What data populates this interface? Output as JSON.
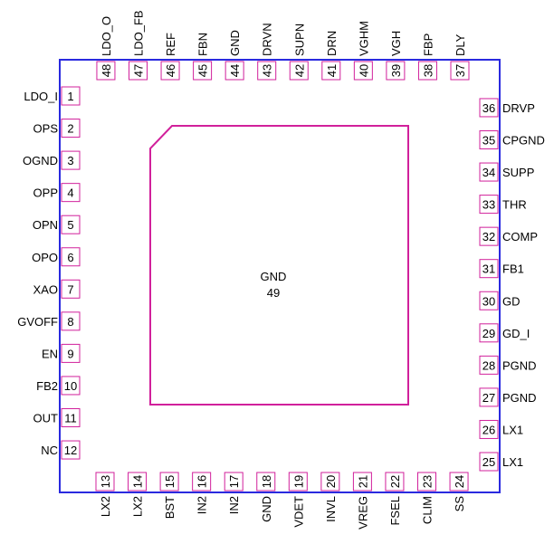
{
  "colors": {
    "package_outline": "#2a2adf",
    "pin_box": "#d1209b",
    "exposed_pad": "#d1209b",
    "text": "#000000"
  },
  "exposed_pad": {
    "name": "GND",
    "number": "49"
  },
  "pins": {
    "left": [
      {
        "num": "1",
        "name": "LDO_I"
      },
      {
        "num": "2",
        "name": "OPS"
      },
      {
        "num": "3",
        "name": "OGND"
      },
      {
        "num": "4",
        "name": "OPP"
      },
      {
        "num": "5",
        "name": "OPN"
      },
      {
        "num": "6",
        "name": "OPO"
      },
      {
        "num": "7",
        "name": "XAO"
      },
      {
        "num": "8",
        "name": "GVOFF"
      },
      {
        "num": "9",
        "name": "EN"
      },
      {
        "num": "10",
        "name": "FB2"
      },
      {
        "num": "11",
        "name": "OUT"
      },
      {
        "num": "12",
        "name": "NC"
      }
    ],
    "bottom": [
      {
        "num": "13",
        "name": "LX2"
      },
      {
        "num": "14",
        "name": "LX2"
      },
      {
        "num": "15",
        "name": "BST"
      },
      {
        "num": "16",
        "name": "IN2"
      },
      {
        "num": "17",
        "name": "IN2"
      },
      {
        "num": "18",
        "name": "GND"
      },
      {
        "num": "19",
        "name": "VDET"
      },
      {
        "num": "20",
        "name": "INVL"
      },
      {
        "num": "21",
        "name": "VREG"
      },
      {
        "num": "22",
        "name": "FSEL"
      },
      {
        "num": "23",
        "name": "CLIM"
      },
      {
        "num": "24",
        "name": "SS"
      }
    ],
    "right": [
      {
        "num": "25",
        "name": "LX1"
      },
      {
        "num": "26",
        "name": "LX1"
      },
      {
        "num": "27",
        "name": "PGND"
      },
      {
        "num": "28",
        "name": "PGND"
      },
      {
        "num": "29",
        "name": "GD_I"
      },
      {
        "num": "30",
        "name": "GD"
      },
      {
        "num": "31",
        "name": "FB1"
      },
      {
        "num": "32",
        "name": "COMP"
      },
      {
        "num": "33",
        "name": "THR"
      },
      {
        "num": "34",
        "name": "SUPP"
      },
      {
        "num": "35",
        "name": "CPGND"
      },
      {
        "num": "36",
        "name": "DRVP"
      }
    ],
    "top": [
      {
        "num": "37",
        "name": "DLY"
      },
      {
        "num": "38",
        "name": "FBP"
      },
      {
        "num": "39",
        "name": "VGH"
      },
      {
        "num": "40",
        "name": "VGHM"
      },
      {
        "num": "41",
        "name": "DRN"
      },
      {
        "num": "42",
        "name": "SUPN"
      },
      {
        "num": "43",
        "name": "DRVN"
      },
      {
        "num": "44",
        "name": "GND"
      },
      {
        "num": "45",
        "name": "FBN"
      },
      {
        "num": "46",
        "name": "REF"
      },
      {
        "num": "47",
        "name": "LDO_FB"
      },
      {
        "num": "48",
        "name": "LDO_O"
      }
    ]
  }
}
